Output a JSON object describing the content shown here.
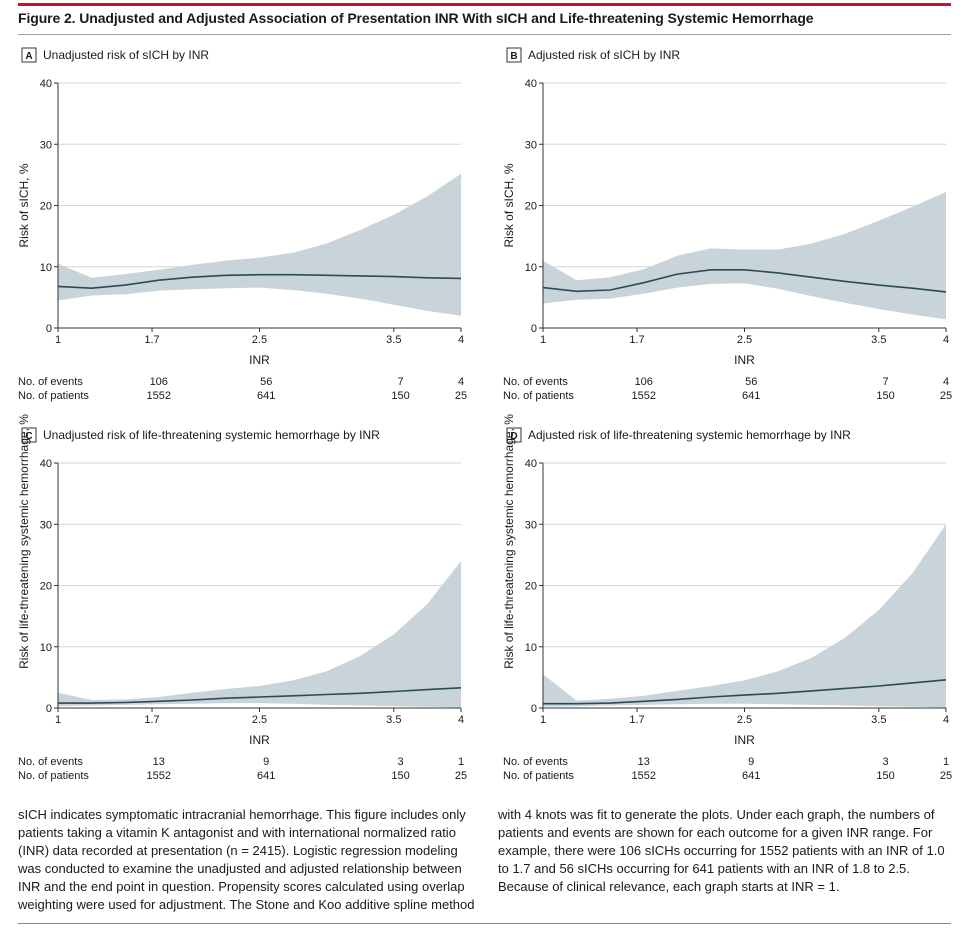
{
  "figure": {
    "title": "Figure 2. Unadjusted and Adjusted Association of Presentation INR With sICH and Life-threatening Systemic Hemorrhage",
    "caption_left": "sICH indicates symptomatic intracranial hemorrhage. This figure includes only patients taking a vitamin K antagonist and with international normalized ratio (INR) data recorded at presentation (n = 2415). Logistic regression modeling was conducted to examine the unadjusted and adjusted relationship between INR and the end point in question. Propensity scores calculated using overlap weighting were used for adjustment. The Stone and Koo additive spline method",
    "caption_right": "with 4 knots was fit to generate the plots. Under each graph, the numbers of patients and events are shown for each outcome for a given INR range. For example, there were 106 sICHs occurring for 1552 patients with an INR of 1.0 to 1.7 and 56 sICHs occurring for 641 patients with an INR of 1.8 to 2.5. Because of clinical relevance, each graph starts at INR = 1."
  },
  "colors": {
    "band": "#c8d3da",
    "line": "#2b4a58",
    "grid": "#d6d6d6",
    "accent": "#c8102e"
  },
  "chart_data": [
    {
      "type": "line",
      "panel": "A",
      "title": "Unadjusted risk of sICH by INR",
      "xlabel": "INR",
      "ylabel": "Risk of sICH, %",
      "xlim": [
        1,
        4
      ],
      "ylim": [
        0,
        40
      ],
      "xticks": [
        1,
        1.7,
        2.5,
        3.5,
        4
      ],
      "yticks": [
        0,
        10,
        20,
        30,
        40
      ],
      "grid": "horizontal",
      "x": [
        1,
        1.25,
        1.5,
        1.75,
        2,
        2.25,
        2.5,
        2.75,
        3,
        3.25,
        3.5,
        3.75,
        4
      ],
      "estimate": [
        6.8,
        6.5,
        7.0,
        7.8,
        8.3,
        8.6,
        8.7,
        8.7,
        8.6,
        8.5,
        8.4,
        8.2,
        8.1
      ],
      "upper": [
        10.5,
        8.2,
        8.8,
        9.5,
        10.3,
        11.0,
        11.5,
        12.3,
        13.8,
        16.0,
        18.5,
        21.5,
        25.2
      ],
      "lower": [
        4.5,
        5.3,
        5.5,
        6.1,
        6.3,
        6.5,
        6.6,
        6.2,
        5.6,
        4.8,
        3.8,
        2.8,
        2.0
      ],
      "counts": {
        "events_label": "No. of events",
        "patients_label": "No. of patients",
        "x": [
          1.75,
          2.55,
          3.55,
          4
        ],
        "events": [
          "106",
          "56",
          "7",
          "4"
        ],
        "patients": [
          "1552",
          "641",
          "150",
          "25"
        ]
      }
    },
    {
      "type": "line",
      "panel": "B",
      "title": "Adjusted risk of sICH by INR",
      "xlabel": "INR",
      "ylabel": "Risk of sICH, %",
      "xlim": [
        1,
        4
      ],
      "ylim": [
        0,
        40
      ],
      "xticks": [
        1,
        1.7,
        2.5,
        3.5,
        4
      ],
      "yticks": [
        0,
        10,
        20,
        30,
        40
      ],
      "grid": "horizontal",
      "x": [
        1,
        1.25,
        1.5,
        1.75,
        2,
        2.25,
        2.5,
        2.75,
        3,
        3.25,
        3.5,
        3.75,
        4
      ],
      "estimate": [
        6.6,
        6.0,
        6.2,
        7.4,
        8.8,
        9.5,
        9.5,
        9.0,
        8.3,
        7.6,
        7.0,
        6.5,
        5.9
      ],
      "upper": [
        11.0,
        7.8,
        8.3,
        9.6,
        11.8,
        13.0,
        12.8,
        12.8,
        13.8,
        15.4,
        17.5,
        19.8,
        22.2
      ],
      "lower": [
        4.0,
        4.6,
        4.8,
        5.6,
        6.6,
        7.2,
        7.3,
        6.4,
        5.2,
        4.1,
        3.1,
        2.2,
        1.4
      ],
      "counts": {
        "events_label": "No. of events",
        "patients_label": "No. of patients",
        "x": [
          1.75,
          2.55,
          3.55,
          4
        ],
        "events": [
          "106",
          "56",
          "7",
          "4"
        ],
        "patients": [
          "1552",
          "641",
          "150",
          "25"
        ]
      }
    },
    {
      "type": "line",
      "panel": "C",
      "title": "Unadjusted risk of life-threatening systemic hemorrhage by INR",
      "xlabel": "INR",
      "ylabel": "Risk of life-threatening systemic hemorrhage, %",
      "xlim": [
        1,
        4
      ],
      "ylim": [
        0,
        40
      ],
      "xticks": [
        1,
        1.7,
        2.5,
        3.5,
        4
      ],
      "yticks": [
        0,
        10,
        20,
        30,
        40
      ],
      "grid": "horizontal",
      "x": [
        1,
        1.25,
        1.5,
        1.75,
        2,
        2.25,
        2.5,
        2.75,
        3,
        3.25,
        3.5,
        3.75,
        4
      ],
      "estimate": [
        0.8,
        0.8,
        0.9,
        1.1,
        1.3,
        1.6,
        1.8,
        2.0,
        2.2,
        2.4,
        2.7,
        3.0,
        3.3
      ],
      "upper": [
        2.5,
        1.3,
        1.4,
        1.8,
        2.5,
        3.1,
        3.6,
        4.5,
        6.0,
        8.5,
        12.0,
        17.0,
        24.0
      ],
      "lower": [
        0.3,
        0.4,
        0.5,
        0.6,
        0.7,
        0.8,
        0.8,
        0.7,
        0.5,
        0.4,
        0.3,
        0.2,
        0.1
      ],
      "counts": {
        "events_label": "No. of events",
        "patients_label": "No. of patients",
        "x": [
          1.75,
          2.55,
          3.55,
          4
        ],
        "events": [
          "13",
          "9",
          "3",
          "1"
        ],
        "patients": [
          "1552",
          "641",
          "150",
          "25"
        ]
      }
    },
    {
      "type": "line",
      "panel": "D",
      "title": "Adjusted risk of life-threatening systemic hemorrhage by INR",
      "xlabel": "INR",
      "ylabel": "Risk of life-threatening systemic hemorrhage, %",
      "xlim": [
        1,
        4
      ],
      "ylim": [
        0,
        40
      ],
      "xticks": [
        1,
        1.7,
        2.5,
        3.5,
        4
      ],
      "yticks": [
        0,
        10,
        20,
        30,
        40
      ],
      "grid": "horizontal",
      "x": [
        1,
        1.25,
        1.5,
        1.75,
        2,
        2.25,
        2.5,
        2.75,
        3,
        3.25,
        3.5,
        3.75,
        4
      ],
      "estimate": [
        0.7,
        0.7,
        0.8,
        1.1,
        1.4,
        1.8,
        2.1,
        2.4,
        2.8,
        3.2,
        3.6,
        4.1,
        4.6
      ],
      "upper": [
        5.5,
        1.2,
        1.5,
        2.0,
        2.8,
        3.6,
        4.5,
        6.0,
        8.2,
        11.5,
        16.0,
        22.0,
        30.0
      ],
      "lower": [
        0.2,
        0.3,
        0.4,
        0.5,
        0.6,
        0.7,
        0.7,
        0.6,
        0.5,
        0.4,
        0.3,
        0.2,
        0.1
      ],
      "counts": {
        "events_label": "No. of events",
        "patients_label": "No. of patients",
        "x": [
          1.75,
          2.55,
          3.55,
          4
        ],
        "events": [
          "13",
          "9",
          "3",
          "1"
        ],
        "patients": [
          "1552",
          "641",
          "150",
          "25"
        ]
      }
    }
  ]
}
